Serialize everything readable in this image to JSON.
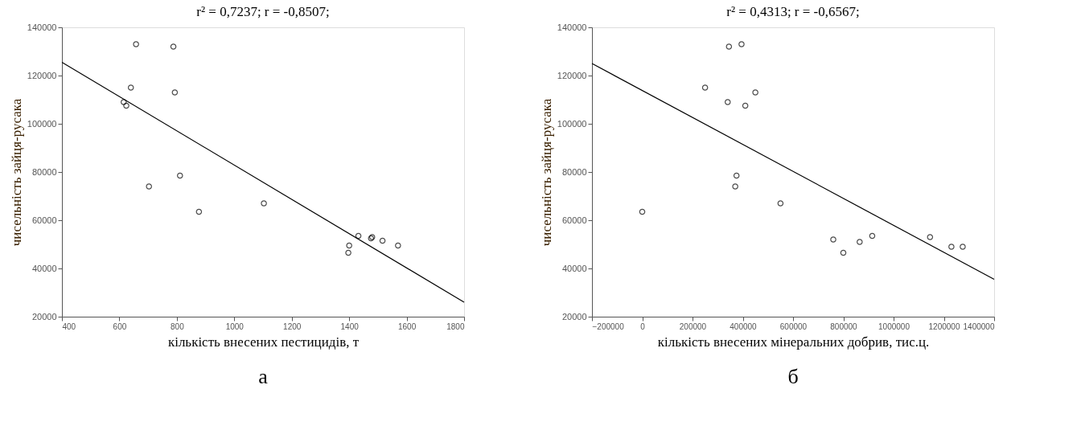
{
  "chart_data": [
    {
      "type": "scatter",
      "title": "r² = 0,7237; r = -0,8507;",
      "xlabel": "кількість внесених пестицидів, т",
      "ylabel": "чисельність зайця-русака",
      "annotations": [
        "а"
      ],
      "xlim": [
        400,
        1800
      ],
      "ylim": [
        20000,
        140000
      ],
      "xticks": [
        400,
        600,
        800,
        1000,
        1200,
        1400,
        1600,
        1800
      ],
      "yticks": [
        20000,
        40000,
        60000,
        80000,
        100000,
        120000,
        140000
      ],
      "grid": false,
      "series": [
        {
          "marker": "circle",
          "color": "#000000",
          "x": [
            658,
            788,
            640,
            793,
            615,
            624,
            811,
            703,
            877,
            1103,
            1432,
            1400,
            1397,
            1476,
            1480,
            1516,
            1570
          ],
          "values": [
            133000,
            132000,
            115000,
            113000,
            109000,
            107500,
            78500,
            74000,
            63500,
            67000,
            53500,
            49500,
            46500,
            52500,
            53000,
            51500,
            49500
          ]
        },
        {
          "type": "line",
          "marker": "none",
          "color": "#000000",
          "x": [
            400,
            1800
          ],
          "values": [
            125500,
            26000
          ]
        }
      ]
    },
    {
      "type": "scatter",
      "title": "r² = 0,4313; r = -0,6567;",
      "xlabel": "кількість внесених мінеральних добрив, тис.ц.",
      "ylabel": "чисельність зайця-русака",
      "annotations": [
        "б"
      ],
      "xlim": [
        -200000,
        1400000
      ],
      "ylim": [
        20000,
        140000
      ],
      "xticks": [
        -200000,
        0,
        200000,
        400000,
        600000,
        800000,
        1000000,
        1200000,
        1400000
      ],
      "yticks": [
        20000,
        40000,
        60000,
        80000,
        100000,
        120000,
        140000
      ],
      "grid": false,
      "series": [
        {
          "marker": "circle",
          "color": "#000000",
          "x": [
            0,
            250000,
            340000,
            345000,
            395000,
            410000,
            450000,
            370000,
            375000,
            550000,
            760000,
            800000,
            865000,
            915000,
            1145000,
            1230000,
            1275000
          ],
          "values": [
            63500,
            115000,
            109000,
            132000,
            133000,
            107500,
            113000,
            74000,
            78500,
            67000,
            52000,
            46500,
            51000,
            53500,
            53000,
            49000,
            49000
          ]
        },
        {
          "type": "line",
          "marker": "none",
          "color": "#000000",
          "x": [
            -200000,
            1400000
          ],
          "values": [
            125000,
            35500
          ]
        }
      ]
    }
  ]
}
